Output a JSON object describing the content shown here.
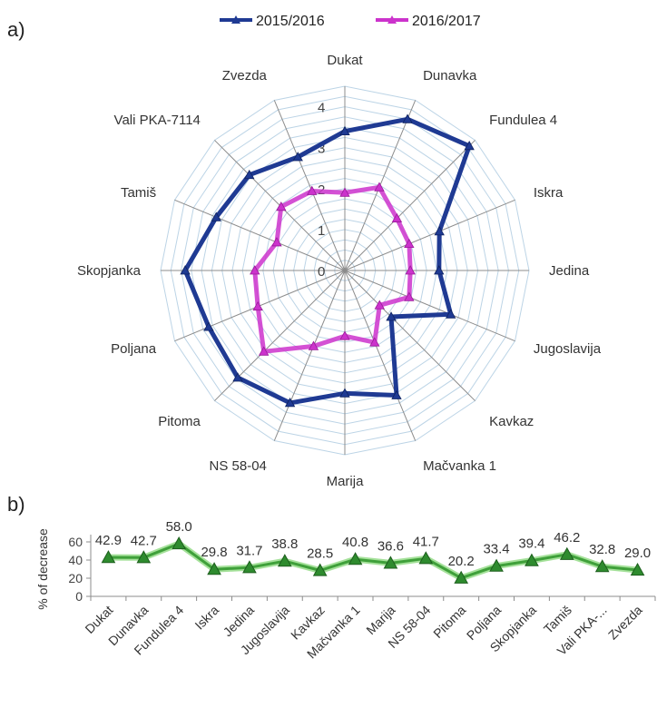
{
  "panels": {
    "a_label": "a)",
    "b_label": "b)"
  },
  "colors": {
    "series_2015": "#1f3a93",
    "series_2016": "#cc33cc",
    "decrease_line": "#3fa03a",
    "decrease_marker": "#2e8b2e",
    "grid": "#bcd4e6",
    "axis": "#8c8c8c"
  },
  "chart_data": [
    {
      "type": "radar",
      "panel": "a",
      "categories": [
        "Dukat",
        "Dunavka",
        "Fundulea 4",
        "Iskra",
        "Jedina",
        "Jugoslavija",
        "Kavkaz",
        "Mačvanka 1",
        "Marija",
        "NS 58-04",
        "Pitoma",
        "Poljana",
        "Skopjanka",
        "Tamiš",
        "Vali PKA-7114",
        "Zvezda"
      ],
      "radial_ticks": [
        "0",
        "1",
        "2",
        "3",
        "4"
      ],
      "rmax": 4.5,
      "grid_levels": 18,
      "legend": "top-center",
      "series": [
        {
          "name": "2015/2016",
          "values": [
            3.4,
            4.0,
            4.3,
            2.5,
            2.3,
            2.8,
            1.6,
            3.3,
            3.0,
            3.5,
            3.7,
            3.6,
            3.9,
            3.4,
            3.3,
            3.0
          ]
        },
        {
          "name": "2016/2017",
          "values": [
            1.9,
            2.2,
            1.8,
            1.7,
            1.6,
            1.7,
            1.2,
            1.9,
            1.6,
            2.0,
            2.8,
            2.3,
            2.2,
            1.8,
            2.2,
            2.1
          ]
        }
      ]
    },
    {
      "type": "line",
      "panel": "b",
      "categories": [
        "Dukat",
        "Dunavka",
        "Fundulea 4",
        "Iskra",
        "Jedina",
        "Jugoslavija",
        "Kavkaz",
        "Mačvanka 1",
        "Marija",
        "NS 58-04",
        "Pitoma",
        "Poljana",
        "Skopjanka",
        "Tamiš",
        "Vali PKA-...",
        "Zvezda"
      ],
      "values": [
        42.9,
        42.7,
        58.0,
        29.8,
        31.7,
        38.8,
        28.5,
        40.8,
        36.6,
        41.7,
        20.2,
        33.4,
        39.4,
        46.2,
        32.8,
        29.0
      ],
      "data_labels": [
        "42.9",
        "42.7",
        "58.0",
        "29.8",
        "31.7",
        "38.8",
        "28.5",
        "40.8",
        "36.6",
        "41.7",
        "20.2",
        "33.4",
        "39.4",
        "46.2",
        "32.8",
        "29.0"
      ],
      "ylabel": "% of decrease",
      "yticks": [
        "0",
        "20",
        "40",
        "60"
      ],
      "ylim": [
        0,
        60
      ]
    }
  ]
}
